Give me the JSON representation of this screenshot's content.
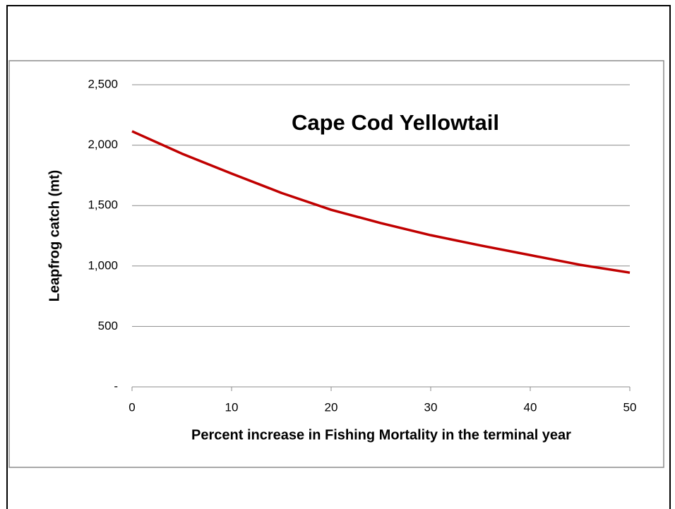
{
  "chart_data": {
    "type": "line",
    "title": "Cape Cod Yellowtail",
    "x_label": "Percent increase in Fishing Mortality in the terminal year",
    "y_label": "Leapfrog catch (mt)",
    "x": [
      0,
      5,
      10,
      15,
      20,
      25,
      30,
      35,
      40,
      45,
      50
    ],
    "series": [
      {
        "name": "Leapfrog catch",
        "color": "#c00000",
        "values": [
          2115,
          1930,
          1765,
          1605,
          1465,
          1355,
          1255,
          1170,
          1090,
          1010,
          945
        ]
      }
    ],
    "xlim": [
      0,
      50
    ],
    "xticks": [
      0,
      10,
      20,
      30,
      40,
      50
    ],
    "ylim": [
      0,
      2500
    ],
    "yticks": [
      {
        "value": 0,
        "label": "-"
      },
      500,
      {
        "value": 1000,
        "label": "1,000"
      },
      {
        "value": 1500,
        "label": "1,500"
      },
      {
        "value": 2000,
        "label": "2,000"
      },
      {
        "value": 2500,
        "label": "2,500"
      }
    ],
    "grid": true
  }
}
